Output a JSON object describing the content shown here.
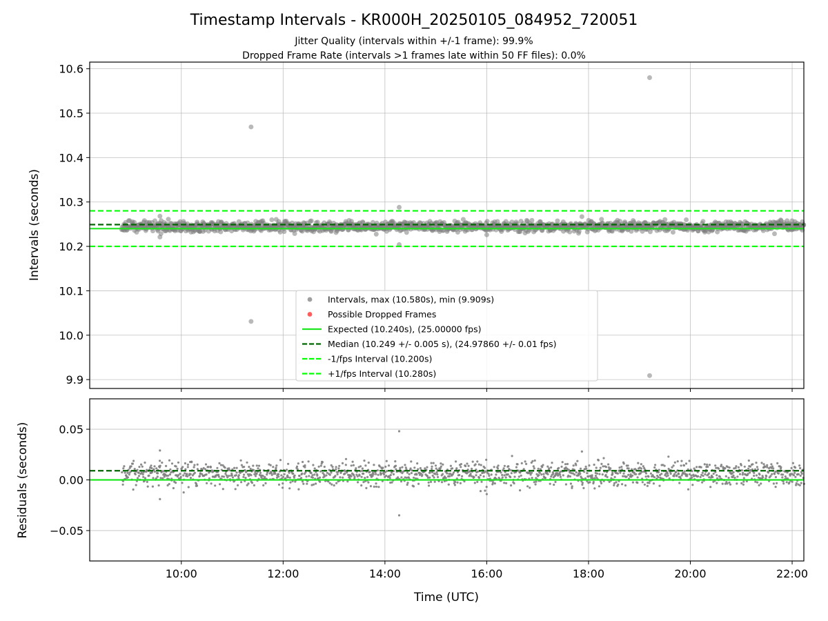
{
  "chart_data": {
    "type": "scatter",
    "title": "Timestamp Intervals - KR000H_20250105_084952_720051",
    "subtitle_lines": [
      "Jitter Quality (intervals within +/-1 frame): 99.9%",
      "Dropped Frame Rate (intervals >1 frames late within 50 FF files): 0.0%"
    ],
    "xlabel": "Time (UTC)",
    "x_tick_labels": [
      "10:00",
      "12:00",
      "14:00",
      "16:00",
      "18:00",
      "20:00",
      "22:00"
    ],
    "x_tick_hours": [
      10,
      12,
      14,
      16,
      18,
      20,
      22
    ],
    "xlim_hours": [
      8.2,
      22.23
    ],
    "data_x_range_hours": [
      8.83,
      22.23
    ],
    "grid": true,
    "legend_position": "lower center",
    "colors": {
      "points": "#808080",
      "dropped": "#ff4d4d",
      "expected": "#1ee61e",
      "median": "#006400",
      "fps_bounds": "#00ff00"
    },
    "panels": {
      "intervals": {
        "ylabel": "Intervals (seconds)",
        "ylim": [
          9.88,
          10.615
        ],
        "y_tick_labels": [
          "9.9",
          "10.0",
          "10.1",
          "10.2",
          "10.3",
          "10.4",
          "10.5",
          "10.6"
        ],
        "y_tick_values": [
          9.9,
          10.0,
          10.1,
          10.2,
          10.3,
          10.4,
          10.5,
          10.6
        ],
        "band": {
          "center": 10.245,
          "spread": 0.006
        },
        "outliers": [
          {
            "x": 11.37,
            "y": 10.469
          },
          {
            "x": 11.37,
            "y": 10.031
          },
          {
            "x": 19.2,
            "y": 10.58
          },
          {
            "x": 19.2,
            "y": 9.909
          },
          {
            "x": 14.28,
            "y": 10.288
          },
          {
            "x": 14.28,
            "y": 10.204
          },
          {
            "x": 9.58,
            "y": 10.268
          },
          {
            "x": 9.58,
            "y": 10.221
          },
          {
            "x": 16.0,
            "y": 10.226
          },
          {
            "x": 17.87,
            "y": 10.267
          }
        ],
        "lines": {
          "expected": 10.24,
          "median": 10.249,
          "minus_fps": 10.2,
          "plus_fps": 10.28
        }
      },
      "residuals": {
        "ylabel": "Residuals (seconds)",
        "ylim": [
          -0.08,
          0.08
        ],
        "y_tick_labels": [
          "−0.05",
          "0.00",
          "0.05"
        ],
        "y_tick_values": [
          -0.05,
          0.0,
          0.05
        ],
        "band": {
          "center": 0.006,
          "spread": 0.006
        },
        "outliers": [
          {
            "x": 14.28,
            "y": 0.048
          },
          {
            "x": 14.28,
            "y": -0.035
          },
          {
            "x": 9.58,
            "y": 0.029
          },
          {
            "x": 9.58,
            "y": -0.019
          },
          {
            "x": 17.87,
            "y": 0.028
          },
          {
            "x": 16.0,
            "y": -0.014
          }
        ],
        "lines": {
          "expected": 0.0,
          "median": 0.009
        }
      }
    },
    "legend": [
      {
        "label": "Intervals, max (10.580s), min (9.909s)",
        "kind": "point",
        "color": "#a0a0a0"
      },
      {
        "label": "Possible Dropped Frames",
        "kind": "point",
        "color": "#ff5c5c"
      },
      {
        "label": "Expected (10.240s), (25.00000 fps)",
        "kind": "solid",
        "color": "#1ee61e"
      },
      {
        "label": "Median (10.249 +/- 0.005 s), (24.97860 +/- 0.01 fps)",
        "kind": "dashed",
        "color": "#006400"
      },
      {
        "label": "-1/fps Interval (10.200s)",
        "kind": "dashed",
        "color": "#00ff00"
      },
      {
        "label": "+1/fps Interval (10.280s)",
        "kind": "dashed",
        "color": "#00ff00"
      }
    ]
  }
}
